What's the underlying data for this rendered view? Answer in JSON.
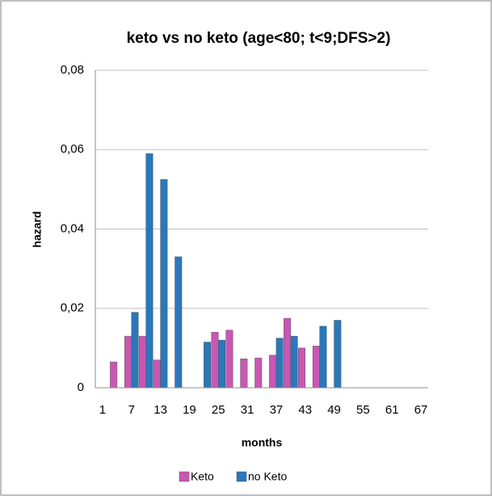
{
  "chart_data": {
    "type": "bar",
    "title": "keto vs no keto (age<80; t<9;DFS>2)",
    "x_label": "months",
    "y_label": "hazard",
    "categories": [
      1,
      null,
      7,
      null,
      13,
      null,
      19,
      null,
      25,
      null,
      31,
      null,
      37,
      null,
      43,
      null,
      49,
      null,
      55,
      null,
      61,
      null,
      67
    ],
    "series": [
      {
        "name": "Keto",
        "color": "#c957b4",
        "values": [
          null,
          0.0065,
          0.013,
          0.013,
          0.007,
          null,
          null,
          null,
          0.014,
          0.0145,
          0.0073,
          0.0075,
          0.0082,
          0.0175,
          0.01,
          0.0105,
          null,
          null,
          null,
          null,
          null,
          null,
          null
        ]
      },
      {
        "name": "no Keto",
        "color": "#2a78bb",
        "values": [
          null,
          null,
          0.019,
          0.059,
          0.0525,
          0.033,
          null,
          0.0115,
          0.012,
          null,
          null,
          null,
          0.0125,
          0.013,
          null,
          0.0155,
          0.017,
          null,
          null,
          null,
          null,
          null,
          null
        ]
      }
    ],
    "ylim": [
      0,
      0.08
    ],
    "yticks": [
      0,
      {
        "value": 0.02,
        "label": "0,02"
      },
      {
        "value": 0.04,
        "label": "0,04"
      },
      {
        "value": 0.06,
        "label": "0,06"
      },
      {
        "value": 0.08,
        "label": "0,08"
      }
    ],
    "grid": true,
    "legend": "bottom"
  }
}
